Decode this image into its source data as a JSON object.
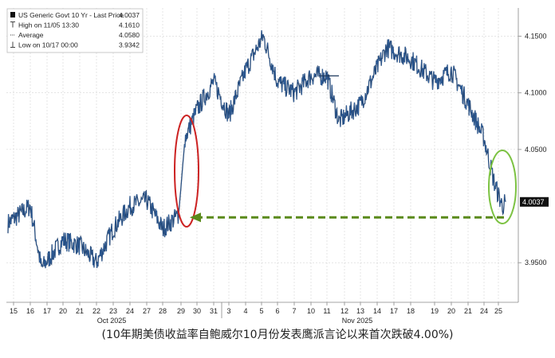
{
  "legend": {
    "rows": [
      {
        "label": "US Generic Govt 10 Yr - Last Price",
        "value": "4.0037",
        "icon": "black-square-icon"
      },
      {
        "label": "High on 11/05 13:30",
        "value": "4.1610",
        "icon": "high-marker-icon"
      },
      {
        "label": "Average",
        "value": "4.0580",
        "icon": "average-line-icon"
      },
      {
        "label": "Low on 10/17 00:00",
        "value": "3.9342",
        "icon": "low-marker-icon"
      }
    ]
  },
  "last_price_tag": "4.0037",
  "caption": "(10年期美债收益率自鲍威尔10月份发表鹰派言论以来首次跌破4.00%)",
  "colors": {
    "price_line": "#1f3a5f",
    "price_highlight": "#3b78c4",
    "grid": "#d3d3d3",
    "red_circle": "#cc2222",
    "green_circle": "#7cc242",
    "arrow": "#5a8a1a"
  },
  "chart_data": {
    "type": "line",
    "title": "US Generic Govt 10 Yr - Last Price",
    "series": [
      {
        "name": "US Generic Govt 10 Yr - Last Price",
        "x": [
          "15",
          "16",
          "17",
          "20",
          "21",
          "22",
          "23",
          "24",
          "27",
          "28",
          "29",
          "29b",
          "30",
          "31",
          "3",
          "4",
          "5",
          "6",
          "7",
          "10",
          "11",
          "12",
          "13",
          "14",
          "17",
          "18",
          "19",
          "20",
          "21",
          "24",
          "25",
          "25b"
        ],
        "values": [
          3.985,
          4.0,
          3.945,
          3.97,
          3.965,
          3.95,
          3.98,
          4.0,
          4.005,
          3.98,
          3.992,
          4.06,
          4.085,
          4.11,
          4.08,
          4.12,
          4.15,
          4.11,
          4.1,
          4.115,
          4.115,
          4.075,
          4.09,
          4.14,
          4.13,
          4.11,
          4.12,
          4.09,
          4.06,
          4.02,
          4.0,
          4.0037
        ]
      }
    ],
    "x_tick_labels": [
      "15",
      "16",
      "17",
      "20",
      "21",
      "22",
      "23",
      "24",
      "27",
      "28",
      "29",
      "30",
      "31",
      "3",
      "4",
      "5",
      "6",
      "7",
      "10",
      "11",
      "12",
      "13",
      "14",
      "17",
      "18",
      "19",
      "20",
      "21",
      "24",
      "25"
    ],
    "month_labels": [
      "Oct 2025",
      "Nov 2025"
    ],
    "y_tick_labels": [
      "4.1500",
      "4.1000",
      "4.0500",
      "4.0037",
      "3.9500"
    ],
    "ylim": [
      3.915,
      4.175
    ],
    "grid": true,
    "legend_position": "top-left",
    "annotations": [
      {
        "type": "ellipse",
        "color": "red",
        "around": "29"
      },
      {
        "type": "ellipse",
        "color": "green",
        "around": "25"
      },
      {
        "type": "dashed-arrow",
        "color": "green",
        "from": "25",
        "to": "29",
        "level": 3.99
      }
    ]
  }
}
